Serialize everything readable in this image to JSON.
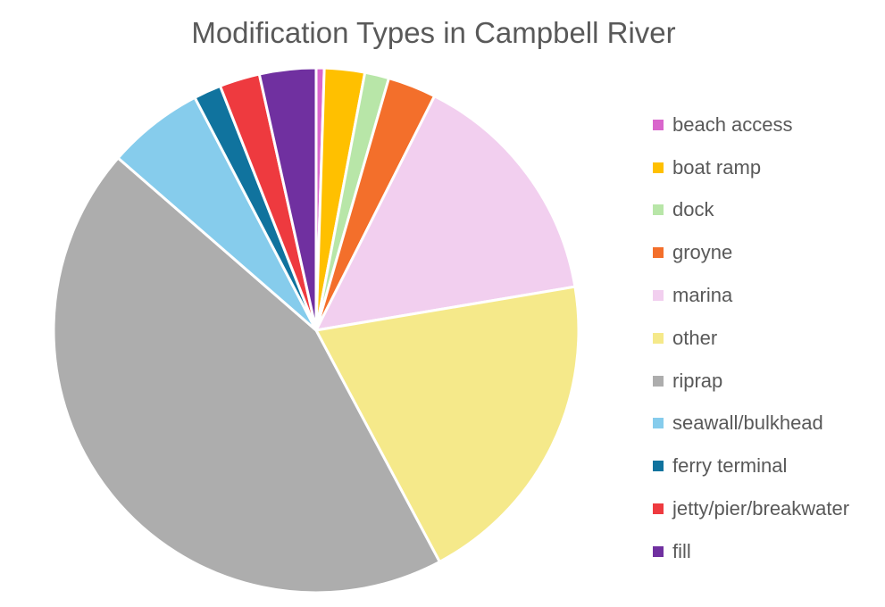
{
  "chart_data": {
    "type": "pie",
    "title": "Modification Types in Campbell River",
    "categories": [
      "beach access",
      "boat ramp",
      "dock",
      "groyne",
      "marina",
      "other",
      "riprap",
      "seawall/bulkhead",
      "ferry terminal",
      "jetty/pier/breakwater",
      "fill"
    ],
    "values": [
      0.5,
      2.5,
      1.5,
      3.0,
      15.0,
      20.0,
      44.5,
      6.0,
      1.7,
      2.5,
      3.5
    ],
    "colors": [
      "#d966cc",
      "#ffc000",
      "#b8e6a8",
      "#f36f2b",
      "#f2cfef",
      "#f5e98a",
      "#adadad",
      "#86ccec",
      "#10739e",
      "#ee3a3f",
      "#7030a0"
    ],
    "start_angle_deg": 0,
    "direction": "clockwise",
    "legend_position": "right"
  }
}
